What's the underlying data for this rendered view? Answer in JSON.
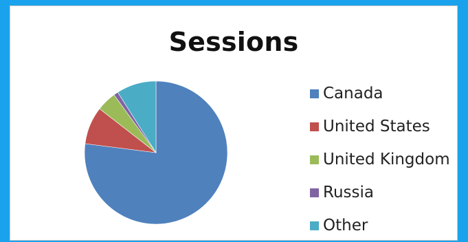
{
  "chart_data": {
    "type": "pie",
    "title": "Sessions",
    "categories": [
      "Canada",
      "United States",
      "United Kingdom",
      "Russia",
      "Other"
    ],
    "values": [
      77,
      8.5,
      4.5,
      1,
      9
    ],
    "colors": [
      "#4f81bd",
      "#c0504d",
      "#9bbb59",
      "#8064a2",
      "#4bacc6"
    ],
    "legend_position": "right"
  }
}
